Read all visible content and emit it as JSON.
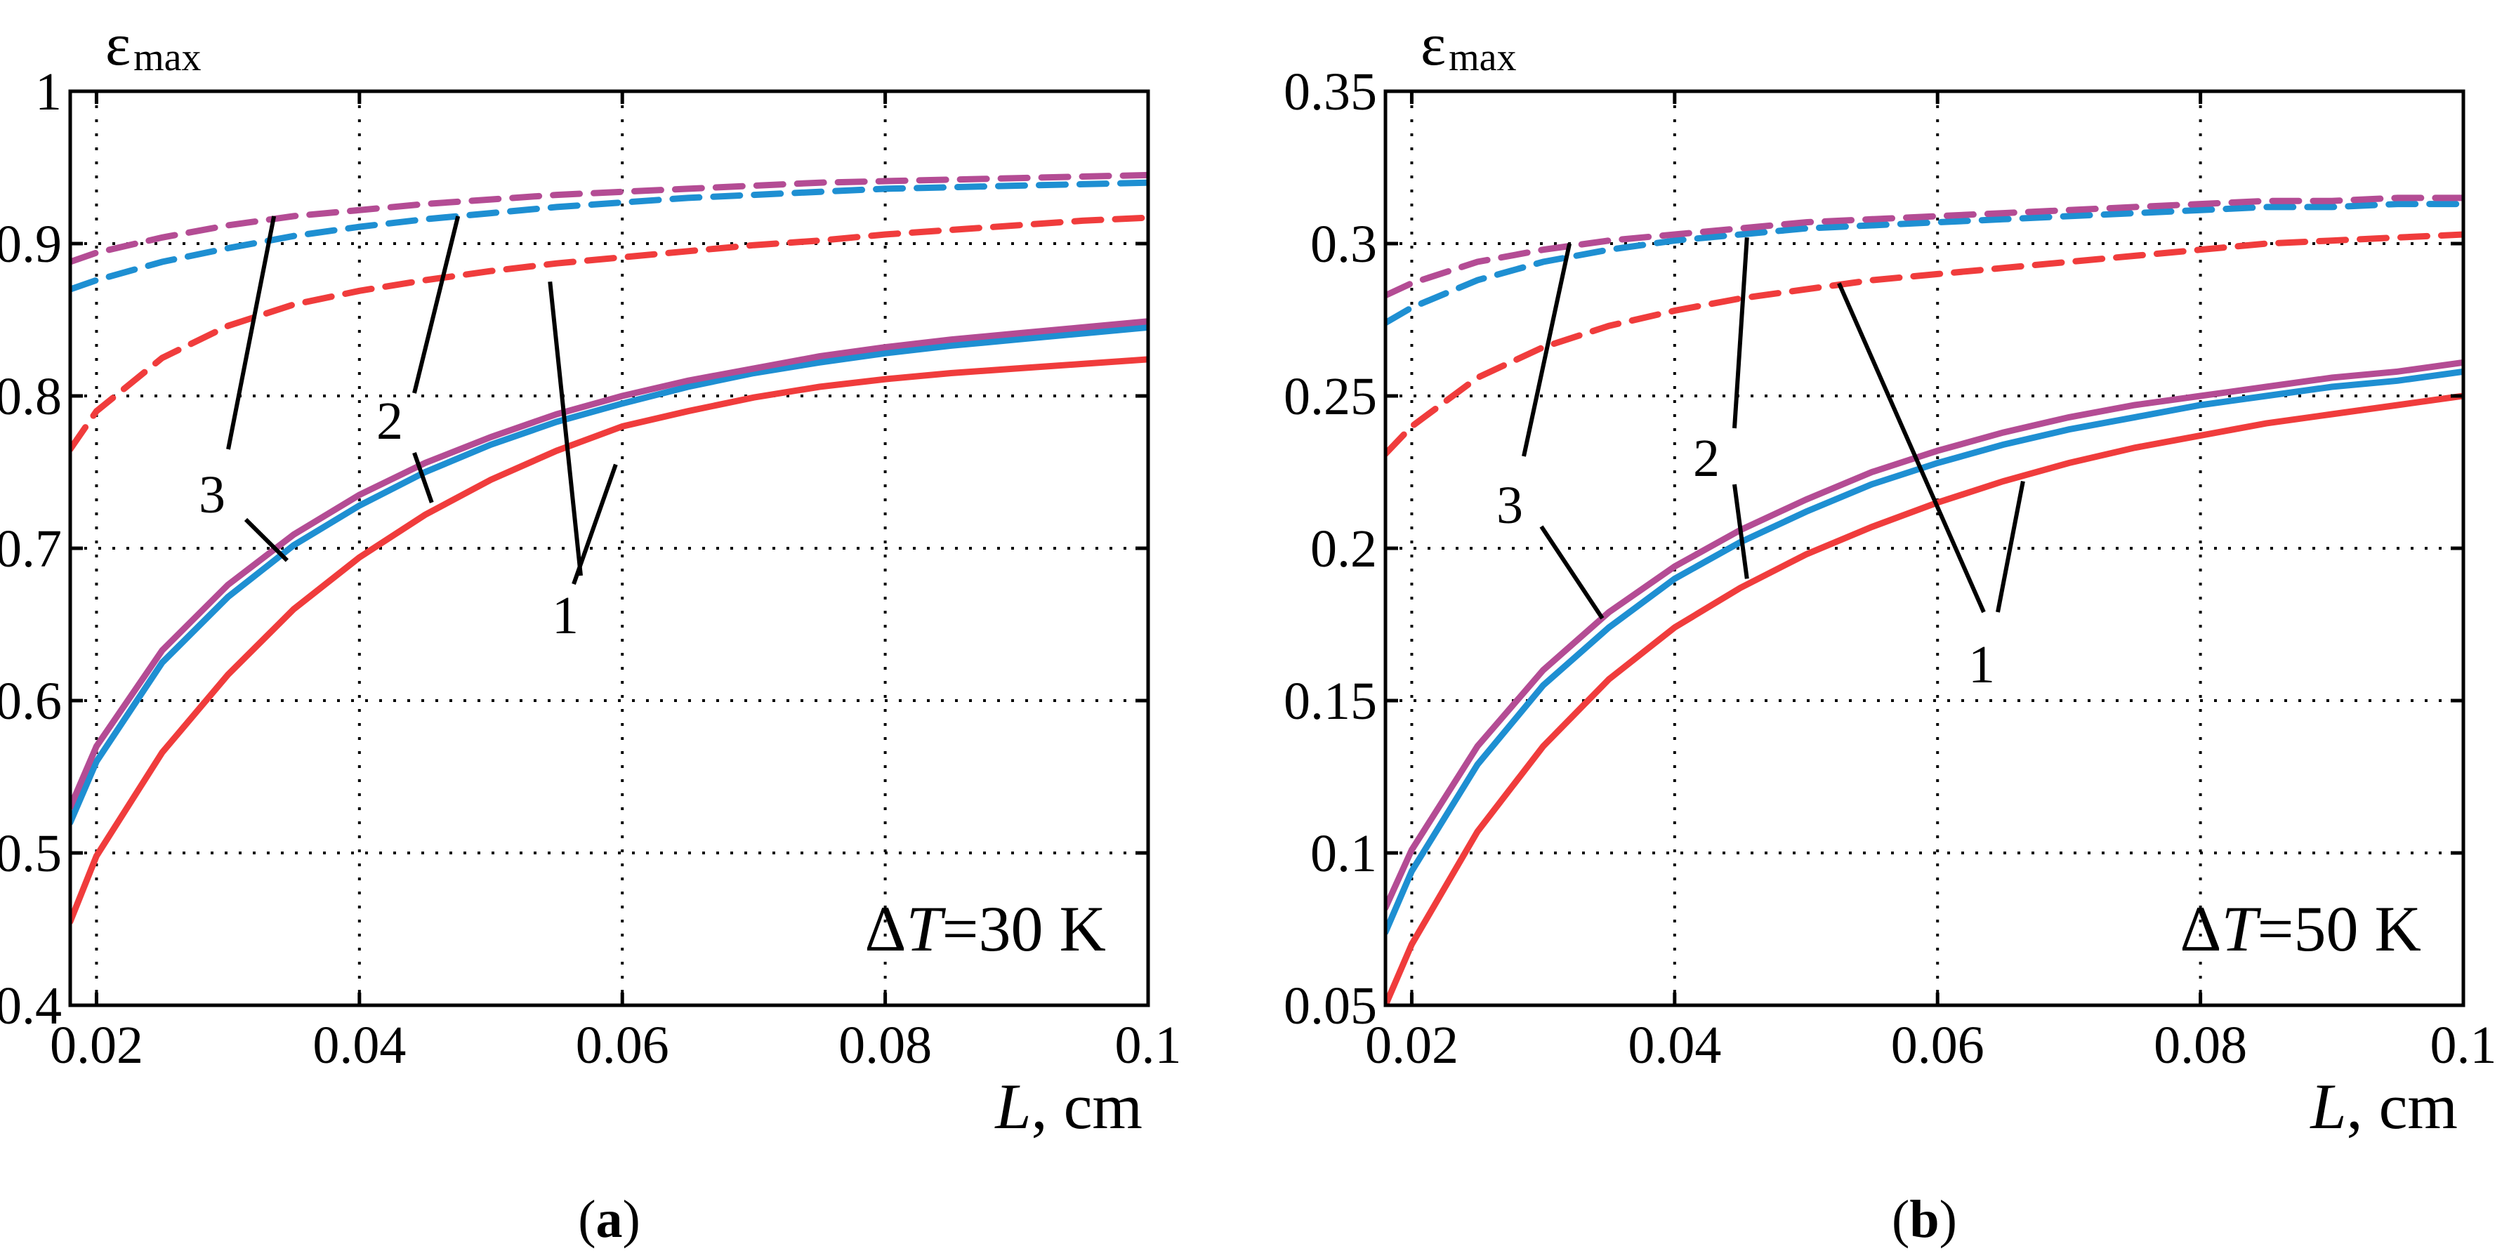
{
  "colors": {
    "series_1": "#f03c3c",
    "series_2": "#1e8fd2",
    "series_3": "#b44c94",
    "axis": "#000000"
  },
  "chart_data": [
    {
      "panel": "(a)",
      "panel_label": "(a)",
      "type": "line",
      "ylabel": "ε",
      "ylabel_sub": "max",
      "xlabel_var": "L",
      "xlabel_unit": ", cm",
      "annotation_delta": "Δ",
      "annotation_var": "T",
      "annotation_value": "=30 K",
      "xlim": [
        0.018,
        0.1
      ],
      "ylim": [
        0.4,
        1.0
      ],
      "xticks": [
        0.02,
        0.04,
        0.06,
        0.08,
        0.1
      ],
      "xtick_labels": [
        "0.02",
        "0.04",
        "0.06",
        "0.08",
        "0.1"
      ],
      "yticks": [
        0.4,
        0.5,
        0.6,
        0.7,
        0.8,
        0.9,
        1.0
      ],
      "ytick_labels": [
        "0.4",
        "0.5",
        "0.6",
        "0.7",
        "0.8",
        "0.9",
        "1"
      ],
      "grid": true,
      "curve_labels": [
        "1",
        "2",
        "3"
      ],
      "series": [
        {
          "name": "1",
          "style": "solid",
          "color_key": "series_1",
          "x": [
            0.018,
            0.02,
            0.025,
            0.03,
            0.035,
            0.04,
            0.045,
            0.05,
            0.055,
            0.06,
            0.065,
            0.07,
            0.075,
            0.08,
            0.085,
            0.09,
            0.095,
            0.1
          ],
          "y": [
            0.455,
            0.498,
            0.566,
            0.617,
            0.66,
            0.694,
            0.722,
            0.745,
            0.764,
            0.78,
            0.79,
            0.799,
            0.806,
            0.811,
            0.815,
            0.818,
            0.821,
            0.824
          ]
        },
        {
          "name": "2",
          "style": "solid",
          "color_key": "series_2",
          "x": [
            0.018,
            0.02,
            0.025,
            0.03,
            0.035,
            0.04,
            0.045,
            0.05,
            0.055,
            0.06,
            0.065,
            0.07,
            0.075,
            0.08,
            0.085,
            0.09,
            0.095,
            0.1
          ],
          "y": [
            0.52,
            0.56,
            0.625,
            0.668,
            0.702,
            0.728,
            0.75,
            0.768,
            0.783,
            0.795,
            0.806,
            0.815,
            0.822,
            0.828,
            0.833,
            0.837,
            0.841,
            0.845
          ]
        },
        {
          "name": "3",
          "style": "solid",
          "color_key": "series_3",
          "x": [
            0.018,
            0.02,
            0.025,
            0.03,
            0.035,
            0.04,
            0.045,
            0.05,
            0.055,
            0.06,
            0.065,
            0.07,
            0.075,
            0.08,
            0.085,
            0.09,
            0.095,
            0.1
          ],
          "y": [
            0.53,
            0.57,
            0.633,
            0.676,
            0.709,
            0.735,
            0.756,
            0.773,
            0.788,
            0.8,
            0.81,
            0.818,
            0.826,
            0.832,
            0.837,
            0.841,
            0.845,
            0.849
          ]
        },
        {
          "name": "1",
          "style": "dashed",
          "color_key": "series_1",
          "x": [
            0.018,
            0.02,
            0.025,
            0.03,
            0.035,
            0.04,
            0.045,
            0.05,
            0.055,
            0.06,
            0.065,
            0.07,
            0.075,
            0.08,
            0.085,
            0.09,
            0.095,
            0.1
          ],
          "y": [
            0.765,
            0.79,
            0.825,
            0.846,
            0.86,
            0.869,
            0.876,
            0.882,
            0.887,
            0.891,
            0.895,
            0.899,
            0.902,
            0.906,
            0.909,
            0.912,
            0.915,
            0.917
          ]
        },
        {
          "name": "2",
          "style": "dashed",
          "color_key": "series_2",
          "x": [
            0.018,
            0.02,
            0.025,
            0.03,
            0.035,
            0.04,
            0.045,
            0.05,
            0.055,
            0.06,
            0.065,
            0.07,
            0.075,
            0.08,
            0.085,
            0.09,
            0.095,
            0.1
          ],
          "y": [
            0.87,
            0.876,
            0.888,
            0.897,
            0.905,
            0.911,
            0.916,
            0.92,
            0.924,
            0.927,
            0.93,
            0.932,
            0.934,
            0.936,
            0.937,
            0.938,
            0.939,
            0.94
          ]
        },
        {
          "name": "3",
          "style": "dashed",
          "color_key": "series_3",
          "x": [
            0.018,
            0.02,
            0.025,
            0.03,
            0.035,
            0.04,
            0.045,
            0.05,
            0.055,
            0.06,
            0.065,
            0.07,
            0.075,
            0.08,
            0.085,
            0.09,
            0.095,
            0.1
          ],
          "y": [
            0.888,
            0.894,
            0.904,
            0.912,
            0.918,
            0.922,
            0.926,
            0.929,
            0.932,
            0.934,
            0.936,
            0.938,
            0.94,
            0.941,
            0.942,
            0.943,
            0.944,
            0.945
          ]
        }
      ]
    },
    {
      "panel": "(b)",
      "panel_label": "(b)",
      "type": "line",
      "ylabel": "ε",
      "ylabel_sub": "max",
      "xlabel_var": "L",
      "xlabel_unit": ", cm",
      "annotation_delta": "Δ",
      "annotation_var": "T",
      "annotation_value": "=50 K",
      "xlim": [
        0.018,
        0.1
      ],
      "ylim": [
        0.05,
        0.35
      ],
      "xticks": [
        0.02,
        0.04,
        0.06,
        0.08,
        0.1
      ],
      "xtick_labels": [
        "0.02",
        "0.04",
        "0.06",
        "0.08",
        "0.1"
      ],
      "yticks": [
        0.05,
        0.1,
        0.15,
        0.2,
        0.25,
        0.3,
        0.35
      ],
      "ytick_labels": [
        "0.05",
        "0.1",
        "0.15",
        "0.2",
        "0.25",
        "0.3",
        "0.35"
      ],
      "grid": true,
      "curve_labels": [
        "1",
        "2",
        "3"
      ],
      "series": [
        {
          "name": "1",
          "style": "solid",
          "color_key": "series_1",
          "x": [
            0.018,
            0.02,
            0.025,
            0.03,
            0.035,
            0.04,
            0.045,
            0.05,
            0.055,
            0.06,
            0.065,
            0.07,
            0.075,
            0.08,
            0.085,
            0.09,
            0.095,
            0.1
          ],
          "y": [
            0.05,
            0.07,
            0.107,
            0.135,
            0.157,
            0.174,
            0.187,
            0.198,
            0.207,
            0.215,
            0.222,
            0.228,
            0.233,
            0.237,
            0.241,
            0.244,
            0.247,
            0.25
          ]
        },
        {
          "name": "2",
          "style": "solid",
          "color_key": "series_2",
          "x": [
            0.018,
            0.02,
            0.025,
            0.03,
            0.035,
            0.04,
            0.045,
            0.05,
            0.055,
            0.06,
            0.065,
            0.07,
            0.075,
            0.08,
            0.085,
            0.09,
            0.095,
            0.1
          ],
          "y": [
            0.074,
            0.094,
            0.129,
            0.155,
            0.174,
            0.19,
            0.202,
            0.212,
            0.221,
            0.228,
            0.234,
            0.239,
            0.243,
            0.247,
            0.25,
            0.253,
            0.255,
            0.258
          ]
        },
        {
          "name": "3",
          "style": "solid",
          "color_key": "series_3",
          "x": [
            0.018,
            0.02,
            0.025,
            0.03,
            0.035,
            0.04,
            0.045,
            0.05,
            0.055,
            0.06,
            0.065,
            0.07,
            0.075,
            0.08,
            0.085,
            0.09,
            0.095,
            0.1
          ],
          "y": [
            0.082,
            0.101,
            0.135,
            0.16,
            0.179,
            0.194,
            0.206,
            0.216,
            0.225,
            0.232,
            0.238,
            0.243,
            0.247,
            0.25,
            0.253,
            0.256,
            0.258,
            0.261
          ]
        },
        {
          "name": "1",
          "style": "dashed",
          "color_key": "series_1",
          "x": [
            0.018,
            0.02,
            0.025,
            0.03,
            0.035,
            0.04,
            0.045,
            0.05,
            0.055,
            0.06,
            0.065,
            0.07,
            0.075,
            0.08,
            0.085,
            0.09,
            0.095,
            0.1
          ],
          "y": [
            0.231,
            0.24,
            0.256,
            0.266,
            0.273,
            0.278,
            0.282,
            0.285,
            0.288,
            0.29,
            0.292,
            0.294,
            0.296,
            0.298,
            0.3,
            0.301,
            0.302,
            0.303
          ]
        },
        {
          "name": "2",
          "style": "dashed",
          "color_key": "series_2",
          "x": [
            0.018,
            0.02,
            0.025,
            0.03,
            0.035,
            0.04,
            0.045,
            0.05,
            0.055,
            0.06,
            0.065,
            0.07,
            0.075,
            0.08,
            0.085,
            0.09,
            0.095,
            0.1
          ],
          "y": [
            0.274,
            0.279,
            0.288,
            0.294,
            0.298,
            0.301,
            0.303,
            0.305,
            0.306,
            0.307,
            0.308,
            0.309,
            0.31,
            0.311,
            0.312,
            0.312,
            0.313,
            0.313
          ]
        },
        {
          "name": "3",
          "style": "dashed",
          "color_key": "series_3",
          "x": [
            0.018,
            0.02,
            0.025,
            0.03,
            0.035,
            0.04,
            0.045,
            0.05,
            0.055,
            0.06,
            0.065,
            0.07,
            0.075,
            0.08,
            0.085,
            0.09,
            0.095,
            0.1
          ],
          "y": [
            0.283,
            0.287,
            0.294,
            0.298,
            0.301,
            0.303,
            0.305,
            0.307,
            0.308,
            0.309,
            0.31,
            0.311,
            0.312,
            0.313,
            0.314,
            0.314,
            0.315,
            0.315
          ]
        }
      ]
    }
  ]
}
